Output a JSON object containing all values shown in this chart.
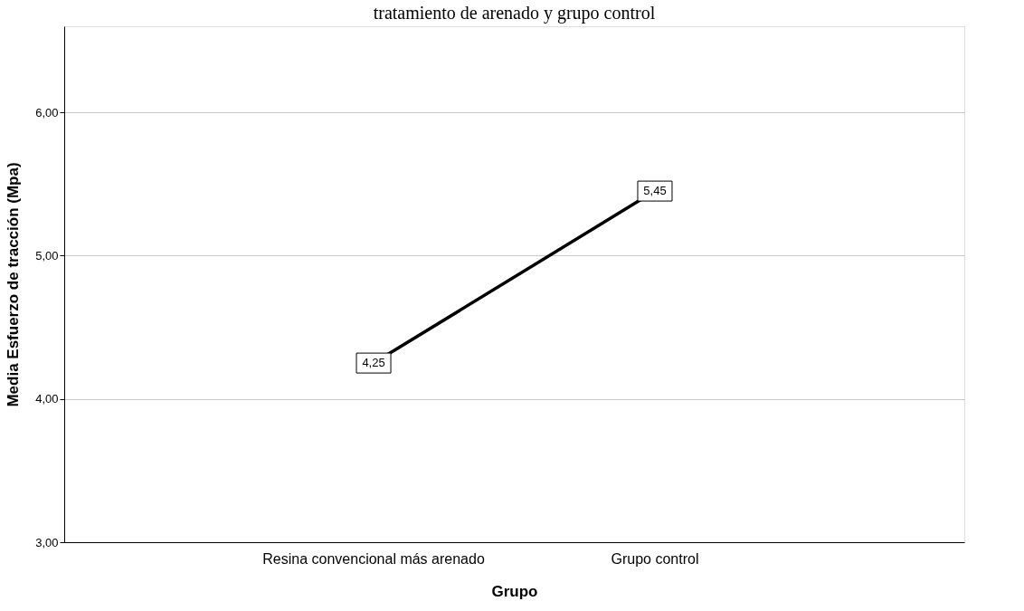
{
  "chart_data": {
    "type": "line",
    "title": "tratamiento de arenado y grupo control",
    "xlabel": "Grupo",
    "ylabel": "Media Esfuerzo de tracción (Mpa)",
    "categories": [
      "Resina convencional más arenado",
      "Grupo control"
    ],
    "series": [
      {
        "color": "#000000",
        "values": [
          4.25,
          5.45
        ],
        "value_labels": [
          "4,25",
          "5,45"
        ]
      }
    ],
    "ylim": [
      3,
      6.6
    ],
    "yticks": [
      {
        "value": 3,
        "label": "3,00"
      },
      {
        "value": 4,
        "label": "4,00"
      },
      {
        "value": 5,
        "label": "5,00"
      },
      {
        "value": 6,
        "label": "6,00"
      }
    ],
    "grid": "y",
    "marker": "square",
    "line_style": "solid"
  }
}
